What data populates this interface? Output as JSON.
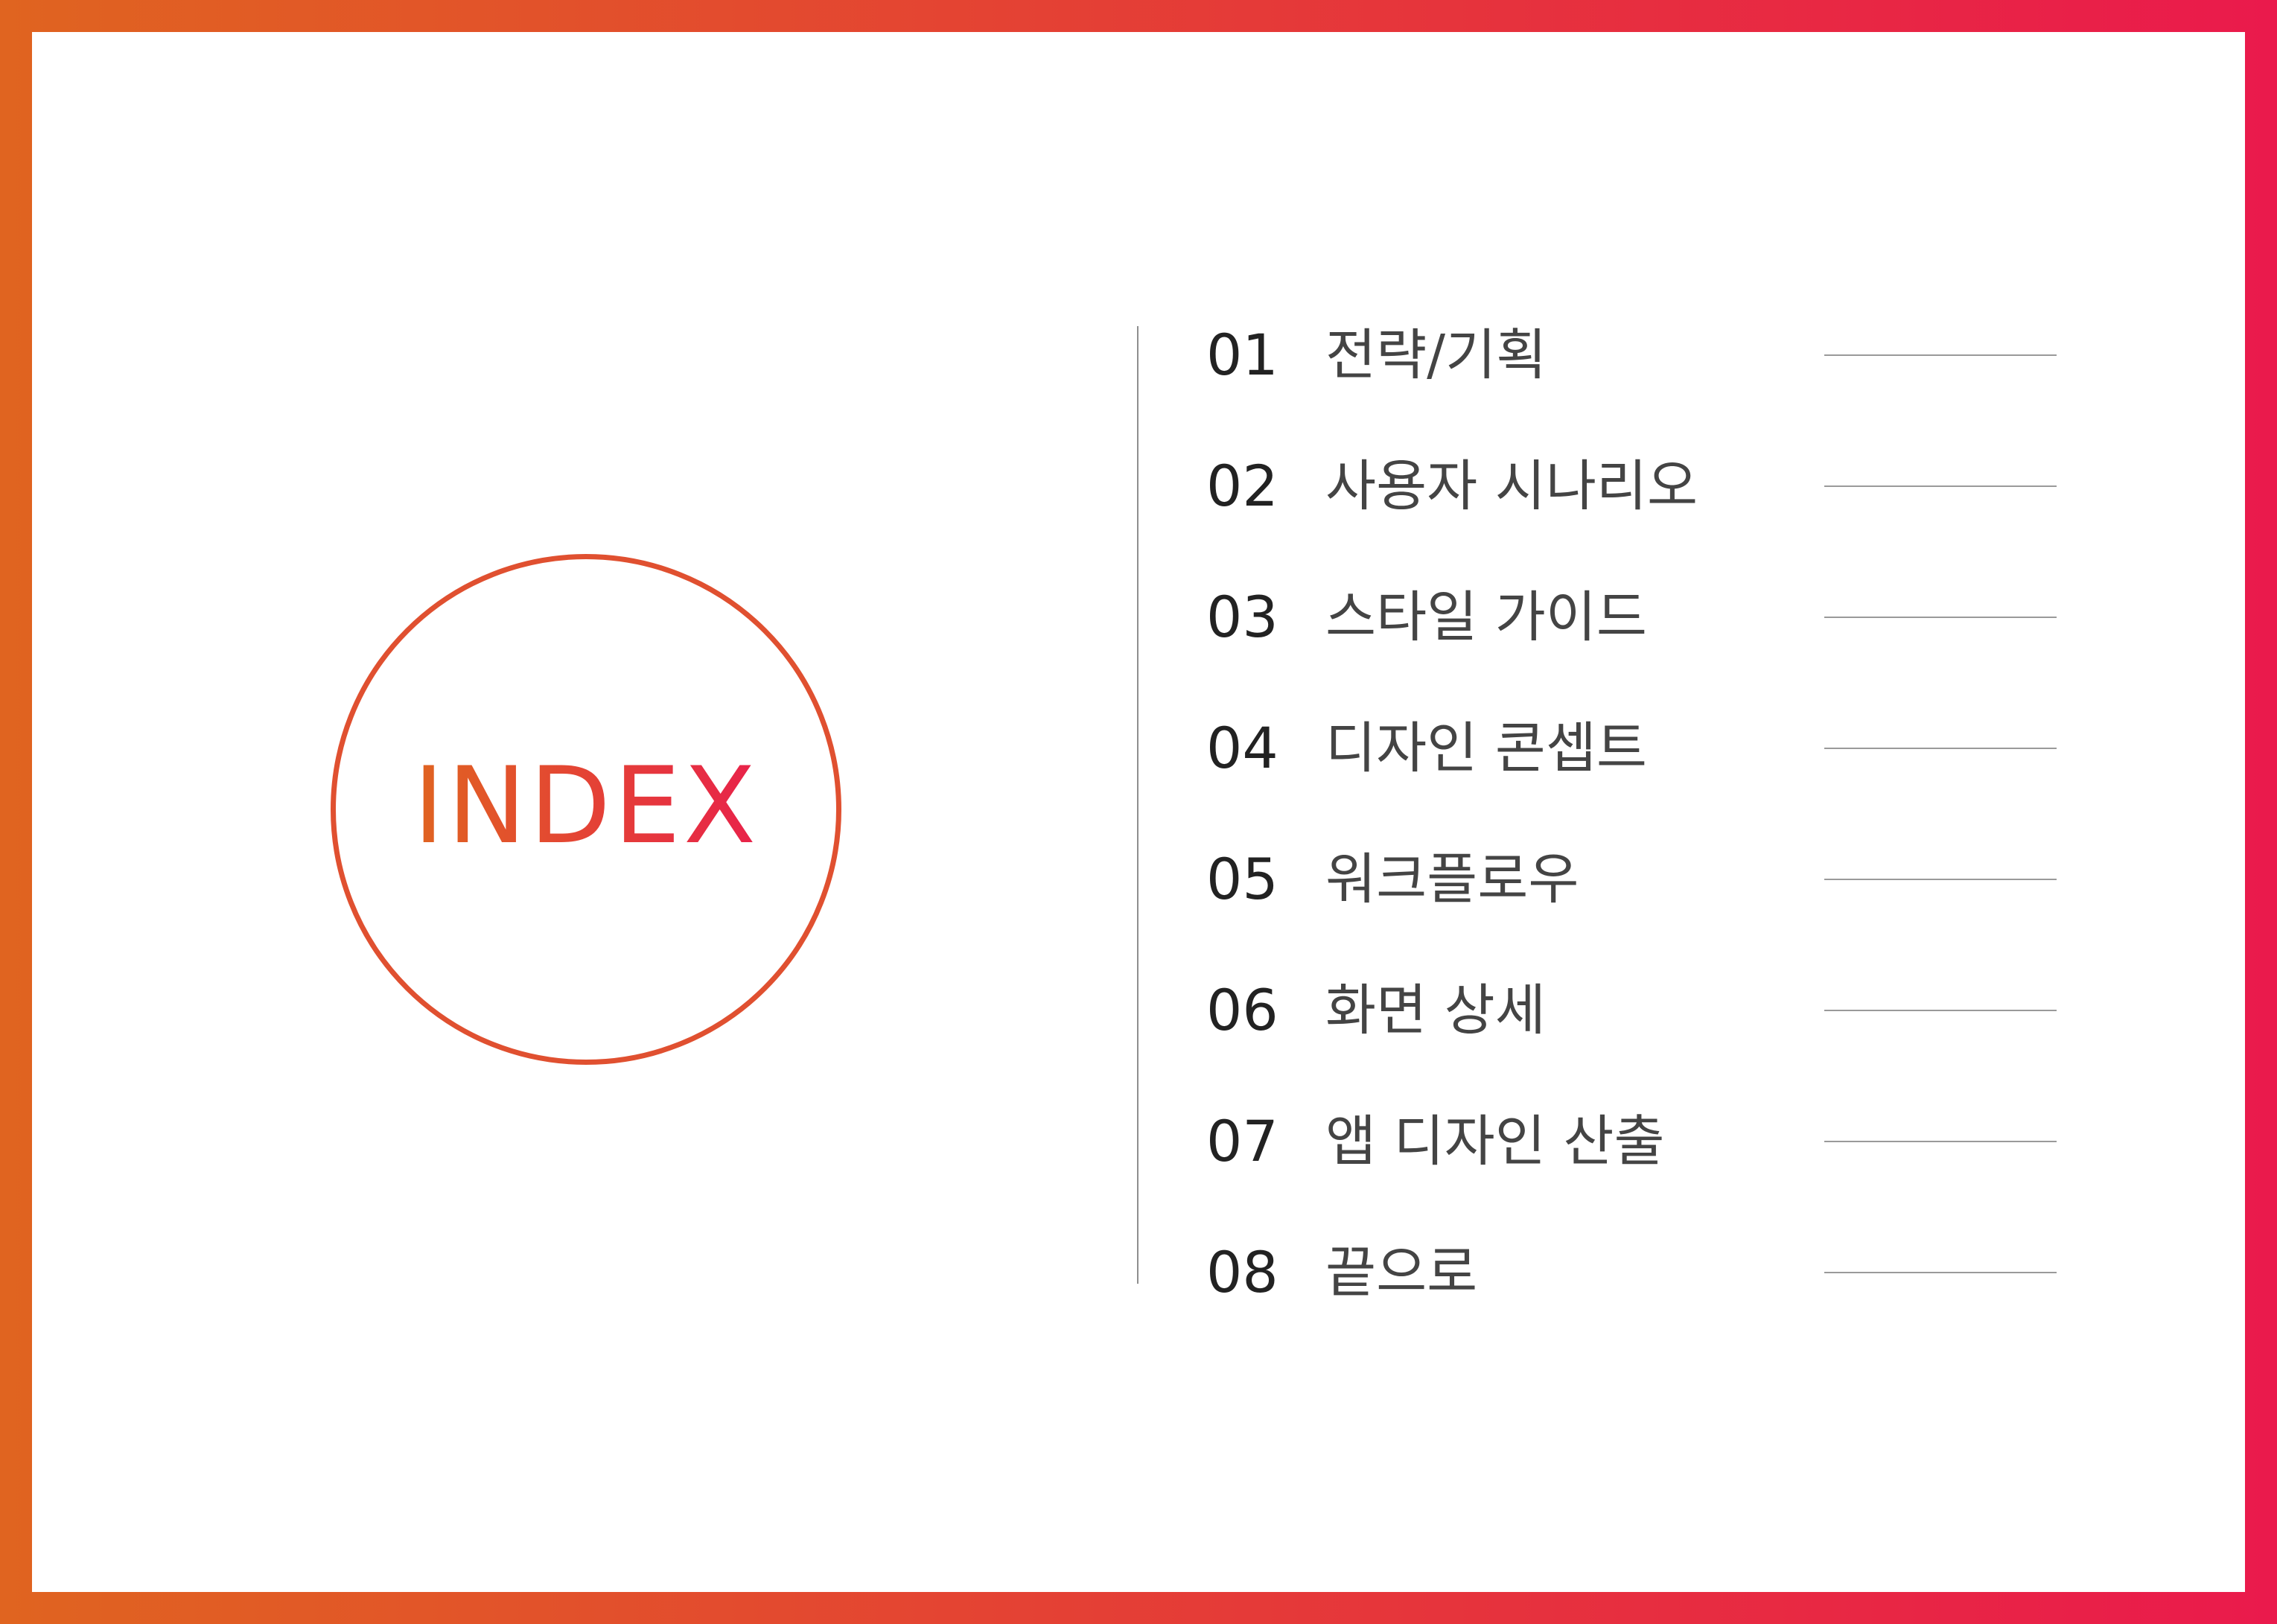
{
  "title": "INDEX",
  "items": [
    {
      "num": "01",
      "label": "전략/기획"
    },
    {
      "num": "02",
      "label": "사용자 시나리오"
    },
    {
      "num": "03",
      "label": "스타일 가이드"
    },
    {
      "num": "04",
      "label": "디자인 콘셉트"
    },
    {
      "num": "05",
      "label": "워크플로우"
    },
    {
      "num": "06",
      "label": "화면 상세"
    },
    {
      "num": "07",
      "label": "앱 디자인 산출"
    },
    {
      "num": "08",
      "label": "끝으로"
    }
  ],
  "colors": {
    "gradient_start": "#E06420",
    "gradient_end": "#EA1A4C",
    "circle_stroke": "#E05030"
  }
}
